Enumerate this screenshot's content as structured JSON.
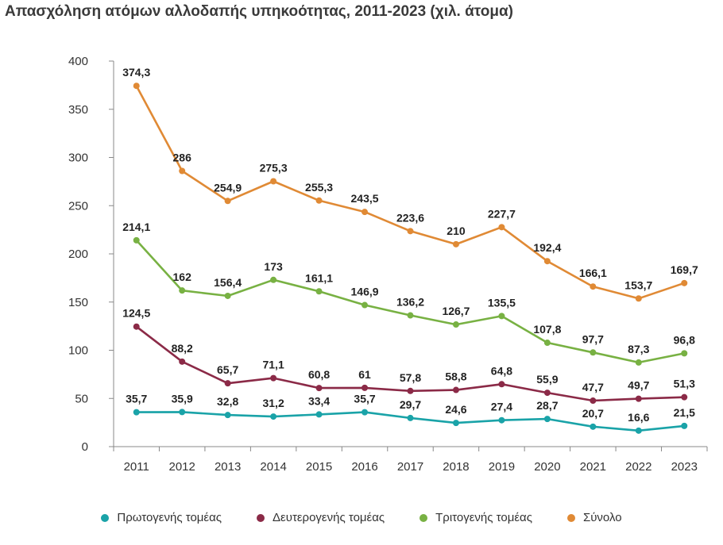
{
  "chart_data": {
    "type": "line",
    "title": "Απασχόληση ατόμων αλλοδαπής υπηκοότητας, 2011-2023 (χιλ. άτομα)",
    "x": [
      "2011",
      "2012",
      "2013",
      "2014",
      "2015",
      "2016",
      "2017",
      "2018",
      "2019",
      "2020",
      "2021",
      "2022",
      "2023"
    ],
    "ylim": [
      0,
      400
    ],
    "yticks": [
      0,
      50,
      100,
      150,
      200,
      250,
      300,
      350,
      400
    ],
    "grid": false,
    "legend_position": "bottom",
    "series": [
      {
        "name": "Πρωτογενής τομέας",
        "color": "#1aa3a8",
        "values": [
          35.7,
          35.9,
          32.8,
          31.2,
          33.4,
          35.7,
          29.7,
          24.6,
          27.4,
          28.7,
          20.7,
          16.6,
          21.5
        ],
        "labels": [
          "35,7",
          "35,9",
          "32,8",
          "31,2",
          "33,4",
          "35,7",
          "29,7",
          "24,6",
          "27,4",
          "28,7",
          "20,7",
          "16,6",
          "21,5"
        ]
      },
      {
        "name": "Δευτερογενής τομέας",
        "color": "#8b2a47",
        "values": [
          124.5,
          88.2,
          65.7,
          71.1,
          60.8,
          61,
          57.8,
          58.8,
          64.8,
          55.9,
          47.7,
          49.7,
          51.3
        ],
        "labels": [
          "124,5",
          "88,2",
          "65,7",
          "71,1",
          "60,8",
          "61",
          "57,8",
          "58,8",
          "64,8",
          "55,9",
          "47,7",
          "49,7",
          "51,3"
        ]
      },
      {
        "name": "Τριτογενής τομέας",
        "color": "#78b143",
        "values": [
          214.1,
          162,
          156.4,
          173,
          161.1,
          146.9,
          136.2,
          126.7,
          135.5,
          107.8,
          97.7,
          87.3,
          96.8
        ],
        "labels": [
          "214,1",
          "162",
          "156,4",
          "173",
          "161,1",
          "146,9",
          "136,2",
          "126,7",
          "135,5",
          "107,8",
          "97,7",
          "87,3",
          "96,8"
        ]
      },
      {
        "name": "Σύνολο",
        "color": "#e08a35",
        "values": [
          374.3,
          286,
          254.9,
          275.3,
          255.3,
          243.5,
          223.6,
          210,
          227.7,
          192.4,
          166.1,
          153.7,
          169.7
        ],
        "labels": [
          "374,3",
          "286",
          "254,9",
          "275,3",
          "255,3",
          "243,5",
          "223,6",
          "210",
          "227,7",
          "192,4",
          "166,1",
          "153,7",
          "169,7"
        ]
      }
    ]
  }
}
